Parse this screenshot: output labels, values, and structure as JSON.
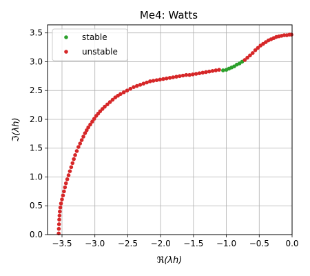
{
  "chart_data": {
    "type": "scatter",
    "title": "Me4: Watts",
    "xlabel": "ℜ(λh)",
    "ylabel": "ℑ(λh)",
    "xlim": [
      -3.72,
      0.0
    ],
    "ylim": [
      0.0,
      3.64
    ],
    "xticks": [
      -3.5,
      -3.0,
      -2.5,
      -2.0,
      -1.5,
      -1.0,
      -0.5,
      0.0
    ],
    "xtick_labels": [
      "−3.5",
      "−3.0",
      "−2.5",
      "−2.0",
      "−1.5",
      "−1.0",
      "−0.5",
      "0.0"
    ],
    "yticks": [
      0.0,
      0.5,
      1.0,
      1.5,
      2.0,
      2.5,
      3.0,
      3.5
    ],
    "ytick_labels": [
      "0.0",
      "0.5",
      "1.0",
      "1.5",
      "2.0",
      "2.5",
      "3.0",
      "3.5"
    ],
    "grid": true,
    "legend_position": "top-left",
    "series": [
      {
        "name": "stable",
        "color": "#2ca02c",
        "x": [
          -1.05,
          -1.0,
          -0.96,
          -0.92,
          -0.88,
          -0.84,
          -0.8,
          -0.76
        ],
        "y": [
          2.85,
          2.86,
          2.88,
          2.9,
          2.92,
          2.95,
          2.97,
          3.0
        ]
      },
      {
        "name": "unstable",
        "color": "#d62728",
        "x": [
          -3.55,
          -3.548,
          -3.545,
          -3.542,
          -3.538,
          -3.533,
          -3.525,
          -3.515,
          -3.5,
          -3.485,
          -3.47,
          -3.455,
          -3.44,
          -3.42,
          -3.4,
          -3.38,
          -3.36,
          -3.34,
          -3.32,
          -3.3,
          -3.275,
          -3.25,
          -3.225,
          -3.2,
          -3.175,
          -3.15,
          -3.125,
          -3.1,
          -3.07,
          -3.04,
          -3.01,
          -2.98,
          -2.95,
          -2.92,
          -2.885,
          -2.85,
          -2.81,
          -2.77,
          -2.73,
          -2.69,
          -2.65,
          -2.61,
          -2.56,
          -2.51,
          -2.46,
          -2.41,
          -2.36,
          -2.31,
          -2.26,
          -2.21,
          -2.16,
          -2.11,
          -2.06,
          -2.01,
          -1.96,
          -1.91,
          -1.86,
          -1.81,
          -1.76,
          -1.71,
          -1.66,
          -1.61,
          -1.56,
          -1.51,
          -1.46,
          -1.41,
          -1.36,
          -1.31,
          -1.26,
          -1.21,
          -1.16,
          -1.11,
          -0.72,
          -0.68,
          -0.64,
          -0.6,
          -0.56,
          -0.52,
          -0.48,
          -0.44,
          -0.4,
          -0.36,
          -0.32,
          -0.28,
          -0.24,
          -0.2,
          -0.16,
          -0.12,
          -0.08,
          -0.04,
          -0.01
        ],
        "y": [
          0.02,
          0.1,
          0.18,
          0.26,
          0.33,
          0.4,
          0.47,
          0.54,
          0.61,
          0.68,
          0.75,
          0.82,
          0.89,
          0.96,
          1.03,
          1.1,
          1.17,
          1.24,
          1.31,
          1.38,
          1.45,
          1.52,
          1.58,
          1.64,
          1.7,
          1.76,
          1.81,
          1.86,
          1.91,
          1.96,
          2.01,
          2.06,
          2.1,
          2.14,
          2.18,
          2.22,
          2.26,
          2.3,
          2.34,
          2.38,
          2.41,
          2.44,
          2.47,
          2.5,
          2.53,
          2.56,
          2.58,
          2.6,
          2.62,
          2.64,
          2.66,
          2.67,
          2.68,
          2.69,
          2.7,
          2.71,
          2.72,
          2.73,
          2.74,
          2.75,
          2.76,
          2.77,
          2.77,
          2.78,
          2.79,
          2.8,
          2.81,
          2.82,
          2.83,
          2.84,
          2.85,
          2.86,
          3.03,
          3.07,
          3.11,
          3.15,
          3.2,
          3.24,
          3.28,
          3.31,
          3.34,
          3.37,
          3.39,
          3.41,
          3.43,
          3.44,
          3.45,
          3.46,
          3.46,
          3.47,
          3.47
        ]
      }
    ]
  }
}
